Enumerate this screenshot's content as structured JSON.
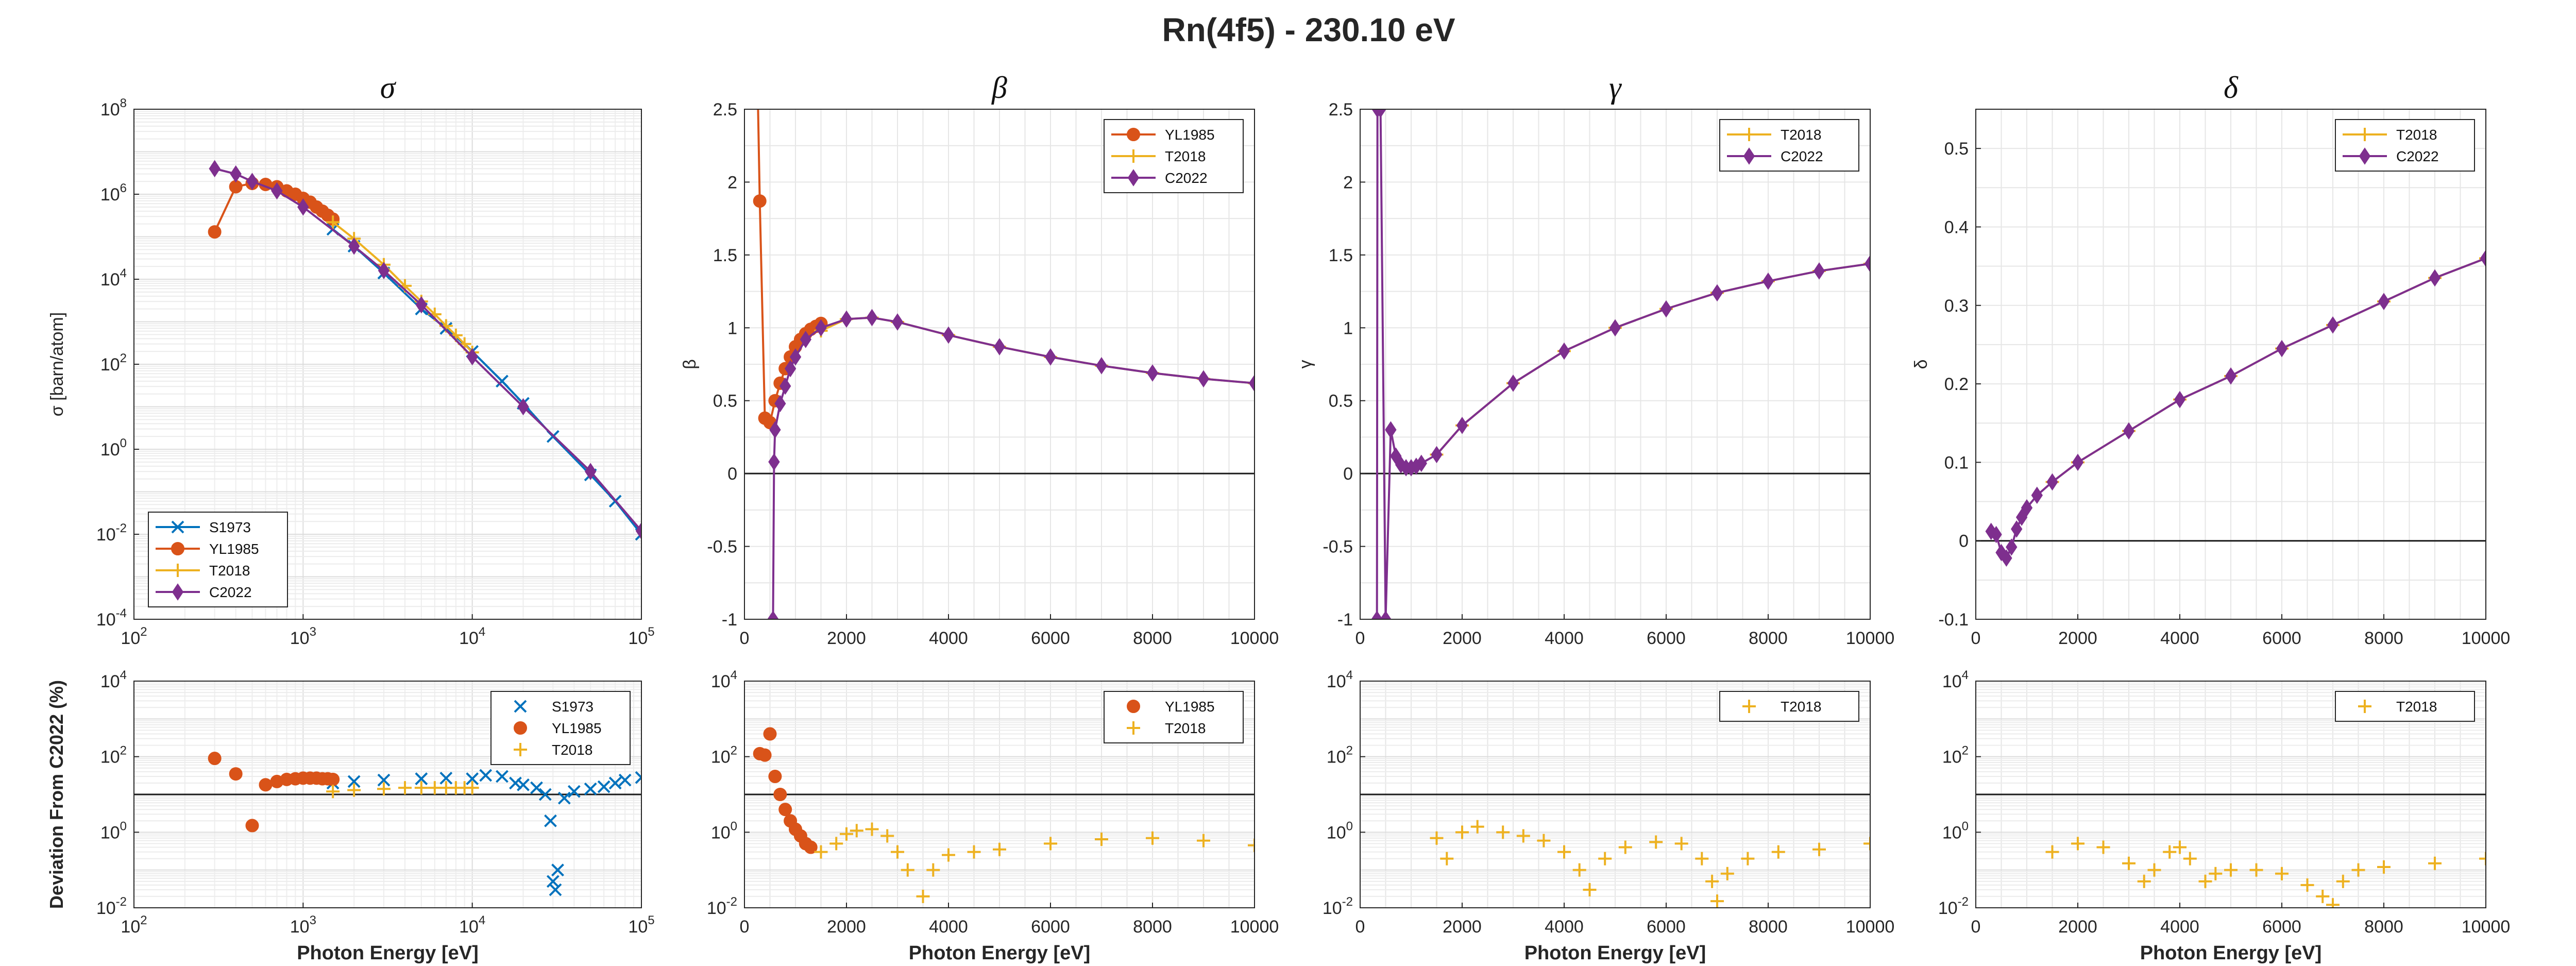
{
  "figure_title": "Rn(4f5) - 230.10 eV",
  "colors": {
    "S1973": "#0072BD",
    "YL1985": "#D95319",
    "T2018": "#EDB120",
    "C2022": "#7E2F8E"
  },
  "chart_data": [
    {
      "id": "sigma",
      "type": "line",
      "title": "σ",
      "ylabel": "σ [barn/atom]",
      "xlabel": "",
      "xscale": "log",
      "yscale": "log",
      "xlim": [
        100,
        100000
      ],
      "ylim": [
        0.0001,
        100000000
      ],
      "xticks": [
        100,
        1000,
        10000,
        100000
      ],
      "yticks": [
        0.0001,
        0.01,
        1,
        100,
        10000,
        1000000,
        100000000
      ],
      "grid": true,
      "legend_position": "bottom-left",
      "series": [
        {
          "name": "S1973",
          "marker": "x",
          "x": [
            1500,
            2000,
            3000,
            5000,
            7000,
            10000,
            15000,
            20000,
            30000,
            50000,
            70000,
            100000
          ],
          "y": [
            150000,
            60000,
            14000,
            2000,
            700,
            200,
            40,
            12,
            2,
            0.25,
            0.06,
            0.01
          ]
        },
        {
          "name": "YL1985",
          "marker": "o",
          "x": [
            300,
            400,
            500,
            600,
            700,
            800,
            900,
            1000,
            1100,
            1200,
            1300,
            1400,
            1500
          ],
          "y": [
            130000,
            1500000,
            1800000,
            1700000,
            1500000,
            1200000,
            1000000,
            800000,
            650000,
            500000,
            400000,
            320000,
            260000
          ]
        },
        {
          "name": "T2018",
          "marker": "+",
          "x": [
            1500,
            2000,
            3000,
            4000,
            5000,
            6000,
            7000,
            8000,
            9000,
            10000
          ],
          "y": [
            220000,
            90000,
            22000,
            7000,
            3000,
            1500,
            800,
            480,
            300,
            190
          ]
        },
        {
          "name": "C2022",
          "marker": "d",
          "x": [
            300,
            400,
            500,
            700,
            1000,
            2000,
            3000,
            5000,
            10000,
            20000,
            50000,
            100000
          ],
          "y": [
            4000000,
            3000000,
            2000000,
            1200000,
            500000,
            60000,
            16000,
            2500,
            150,
            10,
            0.3,
            0.012
          ]
        }
      ]
    },
    {
      "id": "beta",
      "type": "line",
      "title": "β",
      "ylabel": "β",
      "xlabel": "",
      "xscale": "linear",
      "yscale": "linear",
      "xlim": [
        0,
        10000
      ],
      "ylim": [
        -1,
        2.5
      ],
      "xticks": [
        0,
        2000,
        4000,
        6000,
        8000,
        10000
      ],
      "yticks": [
        -1,
        -0.5,
        0,
        0.5,
        1,
        1.5,
        2,
        2.5
      ],
      "zero_line": true,
      "grid": true,
      "legend_position": "top-right",
      "series": [
        {
          "name": "YL1985",
          "marker": "o",
          "x": [
            230,
            300,
            400,
            500,
            600,
            700,
            800,
            900,
            1000,
            1100,
            1200,
            1300,
            1400,
            1500
          ],
          "y": [
            3.2,
            1.87,
            0.38,
            0.35,
            0.5,
            0.62,
            0.72,
            0.8,
            0.87,
            0.92,
            0.96,
            0.99,
            1.01,
            1.03
          ]
        },
        {
          "name": "T2018",
          "marker": "+",
          "x": [
            1500,
            2000,
            2500,
            3000,
            4000,
            5000,
            6000,
            7000,
            8000,
            9000,
            10000
          ],
          "y": [
            0.98,
            1.06,
            1.07,
            1.04,
            0.95,
            0.87,
            0.8,
            0.74,
            0.69,
            0.65,
            0.62
          ]
        },
        {
          "name": "C2022",
          "marker": "d",
          "x": [
            560,
            580,
            600,
            700,
            800,
            900,
            1000,
            1200,
            1500,
            2000,
            2500,
            3000,
            4000,
            5000,
            6000,
            7000,
            8000,
            9000,
            10000
          ],
          "y": [
            -1,
            0.08,
            0.3,
            0.48,
            0.6,
            0.72,
            0.8,
            0.92,
            1.0,
            1.06,
            1.07,
            1.04,
            0.95,
            0.87,
            0.8,
            0.74,
            0.69,
            0.65,
            0.62
          ]
        }
      ]
    },
    {
      "id": "gamma",
      "type": "line",
      "title": "γ",
      "ylabel": "γ",
      "xlabel": "",
      "xscale": "linear",
      "yscale": "linear",
      "xlim": [
        0,
        10000
      ],
      "ylim": [
        -1,
        2.5
      ],
      "xticks": [
        0,
        2000,
        4000,
        6000,
        8000,
        10000
      ],
      "yticks": [
        -1,
        -0.5,
        0,
        0.5,
        1,
        1.5,
        2,
        2.5
      ],
      "zero_line": true,
      "grid": true,
      "legend_position": "top-right",
      "series": [
        {
          "name": "T2018",
          "marker": "+",
          "x": [
            1500,
            2000,
            3000,
            4000,
            5000,
            6000,
            7000,
            8000,
            9000,
            10000
          ],
          "y": [
            0.13,
            0.33,
            0.62,
            0.84,
            1.0,
            1.13,
            1.24,
            1.32,
            1.39,
            1.44
          ]
        },
        {
          "name": "C2022",
          "marker": "d",
          "x": [
            330,
            340,
            400,
            500,
            600,
            700,
            800,
            900,
            1000,
            1100,
            1200,
            1500,
            2000,
            3000,
            4000,
            5000,
            6000,
            7000,
            8000,
            9000,
            10000
          ],
          "y": [
            -1,
            2.5,
            2.5,
            -1,
            0.3,
            0.12,
            0.06,
            0.04,
            0.04,
            0.05,
            0.07,
            0.13,
            0.33,
            0.62,
            0.84,
            1.0,
            1.13,
            1.24,
            1.32,
            1.39,
            1.44
          ]
        }
      ]
    },
    {
      "id": "delta",
      "type": "line",
      "title": "δ",
      "ylabel": "δ",
      "xlabel": "",
      "xscale": "linear",
      "yscale": "linear",
      "xlim": [
        0,
        10000
      ],
      "ylim": [
        -0.1,
        0.55
      ],
      "xticks": [
        0,
        2000,
        4000,
        6000,
        8000,
        10000
      ],
      "yticks": [
        -0.1,
        0,
        0.1,
        0.2,
        0.3,
        0.4,
        0.5
      ],
      "zero_line": true,
      "grid": true,
      "legend_position": "top-right",
      "series": [
        {
          "name": "T2018",
          "marker": "+",
          "x": [
            1500,
            2000,
            3000,
            4000,
            5000,
            6000,
            7000,
            8000,
            9000,
            10000
          ],
          "y": [
            0.075,
            0.1,
            0.14,
            0.18,
            0.21,
            0.245,
            0.275,
            0.305,
            0.335,
            0.36
          ]
        },
        {
          "name": "C2022",
          "marker": "d",
          "x": [
            300,
            400,
            500,
            600,
            700,
            800,
            900,
            1000,
            1200,
            1500,
            2000,
            3000,
            4000,
            5000,
            6000,
            7000,
            8000,
            9000,
            10000
          ],
          "y": [
            0.012,
            0.008,
            -0.015,
            -0.022,
            -0.008,
            0.015,
            0.03,
            0.042,
            0.058,
            0.075,
            0.1,
            0.14,
            0.18,
            0.21,
            0.245,
            0.275,
            0.305,
            0.335,
            0.36
          ]
        }
      ]
    },
    {
      "id": "dev_sigma",
      "type": "scatter",
      "title": "",
      "ylabel": "Deviation From C2022 (%)",
      "xlabel": "Photon Energy [eV]",
      "xscale": "log",
      "yscale": "log",
      "xlim": [
        100,
        100000
      ],
      "ylim": [
        0.01,
        10000
      ],
      "xticks": [
        100,
        1000,
        10000,
        100000
      ],
      "yticks": [
        0.01,
        1,
        100,
        10000
      ],
      "ref_line": 10,
      "grid": true,
      "legend_position": "top-right",
      "series": [
        {
          "name": "S1973",
          "marker": "x",
          "x": [
            1500,
            2000,
            3000,
            5000,
            7000,
            10000,
            12000,
            15000,
            18000,
            20000,
            24000,
            27000,
            29000,
            30000,
            31000,
            32000,
            35000,
            40000,
            50000,
            60000,
            70000,
            80000,
            100000
          ],
          "y": [
            20,
            22,
            24,
            26,
            27,
            26,
            32,
            30,
            20,
            18,
            15,
            10,
            2,
            0.05,
            0.03,
            0.1,
            8,
            12,
            14,
            16,
            20,
            24,
            28
          ]
        },
        {
          "name": "YL1985",
          "marker": "o",
          "x": [
            300,
            400,
            500,
            600,
            700,
            800,
            900,
            1000,
            1100,
            1200,
            1300,
            1400,
            1500
          ],
          "y": [
            90,
            35,
            1.5,
            18,
            22,
            25,
            26,
            27,
            27,
            27,
            26,
            26,
            25
          ]
        },
        {
          "name": "T2018",
          "marker": "+",
          "x": [
            1500,
            2000,
            3000,
            4000,
            5000,
            6000,
            7000,
            8000,
            9000,
            10000
          ],
          "y": [
            12,
            13,
            14,
            15,
            15,
            15,
            15,
            15,
            15,
            15
          ]
        }
      ]
    },
    {
      "id": "dev_beta",
      "type": "scatter",
      "title": "",
      "ylabel": "",
      "xlabel": "Photon Energy [eV]",
      "xscale": "linear",
      "yscale": "log",
      "xlim": [
        0,
        10000
      ],
      "ylim": [
        0.01,
        10000
      ],
      "xticks": [
        0,
        2000,
        4000,
        6000,
        8000,
        10000
      ],
      "yticks": [
        0.01,
        1,
        100,
        10000
      ],
      "ref_line": 10,
      "grid": true,
      "legend_position": "top-right",
      "series": [
        {
          "name": "YL1985",
          "marker": "o",
          "x": [
            300,
            400,
            500,
            600,
            700,
            800,
            900,
            1000,
            1100,
            1200,
            1300
          ],
          "y": [
            120,
            110,
            400,
            30,
            10,
            4,
            2,
            1.2,
            0.8,
            0.5,
            0.4
          ]
        },
        {
          "name": "T2018",
          "marker": "+",
          "x": [
            1500,
            1800,
            2000,
            2200,
            2500,
            2800,
            3000,
            3200,
            3500,
            3700,
            4000,
            4500,
            5000,
            6000,
            7000,
            8000,
            9000,
            10000
          ],
          "y": [
            0.3,
            0.5,
            0.9,
            1.1,
            1.2,
            0.8,
            0.3,
            0.1,
            0.02,
            0.1,
            0.25,
            0.3,
            0.35,
            0.5,
            0.65,
            0.7,
            0.6,
            0.45
          ]
        }
      ]
    },
    {
      "id": "dev_gamma",
      "type": "scatter",
      "title": "",
      "ylabel": "",
      "xlabel": "Photon Energy [eV]",
      "xscale": "linear",
      "yscale": "log",
      "xlim": [
        0,
        10000
      ],
      "ylim": [
        0.01,
        10000
      ],
      "xticks": [
        0,
        2000,
        4000,
        6000,
        8000,
        10000
      ],
      "yticks": [
        0.01,
        1,
        100,
        10000
      ],
      "ref_line": 10,
      "grid": true,
      "legend_position": "top-right",
      "series": [
        {
          "name": "T2018",
          "marker": "+",
          "x": [
            1500,
            1700,
            2000,
            2300,
            2800,
            3200,
            3600,
            4000,
            4300,
            4500,
            4800,
            5200,
            5800,
            6300,
            6700,
            6900,
            7000,
            7200,
            7600,
            8200,
            9000,
            10000
          ],
          "y": [
            0.7,
            0.2,
            1.0,
            1.4,
            1.0,
            0.8,
            0.6,
            0.3,
            0.1,
            0.03,
            0.2,
            0.4,
            0.55,
            0.5,
            0.2,
            0.05,
            0.015,
            0.08,
            0.2,
            0.3,
            0.35,
            0.5
          ]
        }
      ]
    },
    {
      "id": "dev_delta",
      "type": "scatter",
      "title": "",
      "ylabel": "",
      "xlabel": "Photon Energy [eV]",
      "xscale": "linear",
      "yscale": "log",
      "xlim": [
        0,
        10000
      ],
      "ylim": [
        0.01,
        10000
      ],
      "xticks": [
        0,
        2000,
        4000,
        6000,
        8000,
        10000
      ],
      "yticks": [
        0.01,
        1,
        100,
        10000
      ],
      "ref_line": 10,
      "grid": true,
      "legend_position": "top-right",
      "series": [
        {
          "name": "T2018",
          "marker": "+",
          "x": [
            1500,
            2000,
            2500,
            3000,
            3300,
            3500,
            3800,
            4000,
            4200,
            4500,
            4700,
            5000,
            5500,
            6000,
            6500,
            6800,
            7000,
            7200,
            7500,
            8000,
            9000,
            10000
          ],
          "y": [
            0.3,
            0.5,
            0.4,
            0.15,
            0.05,
            0.1,
            0.3,
            0.4,
            0.2,
            0.05,
            0.08,
            0.1,
            0.1,
            0.08,
            0.04,
            0.02,
            0.012,
            0.05,
            0.1,
            0.12,
            0.15,
            0.2
          ]
        }
      ]
    }
  ]
}
